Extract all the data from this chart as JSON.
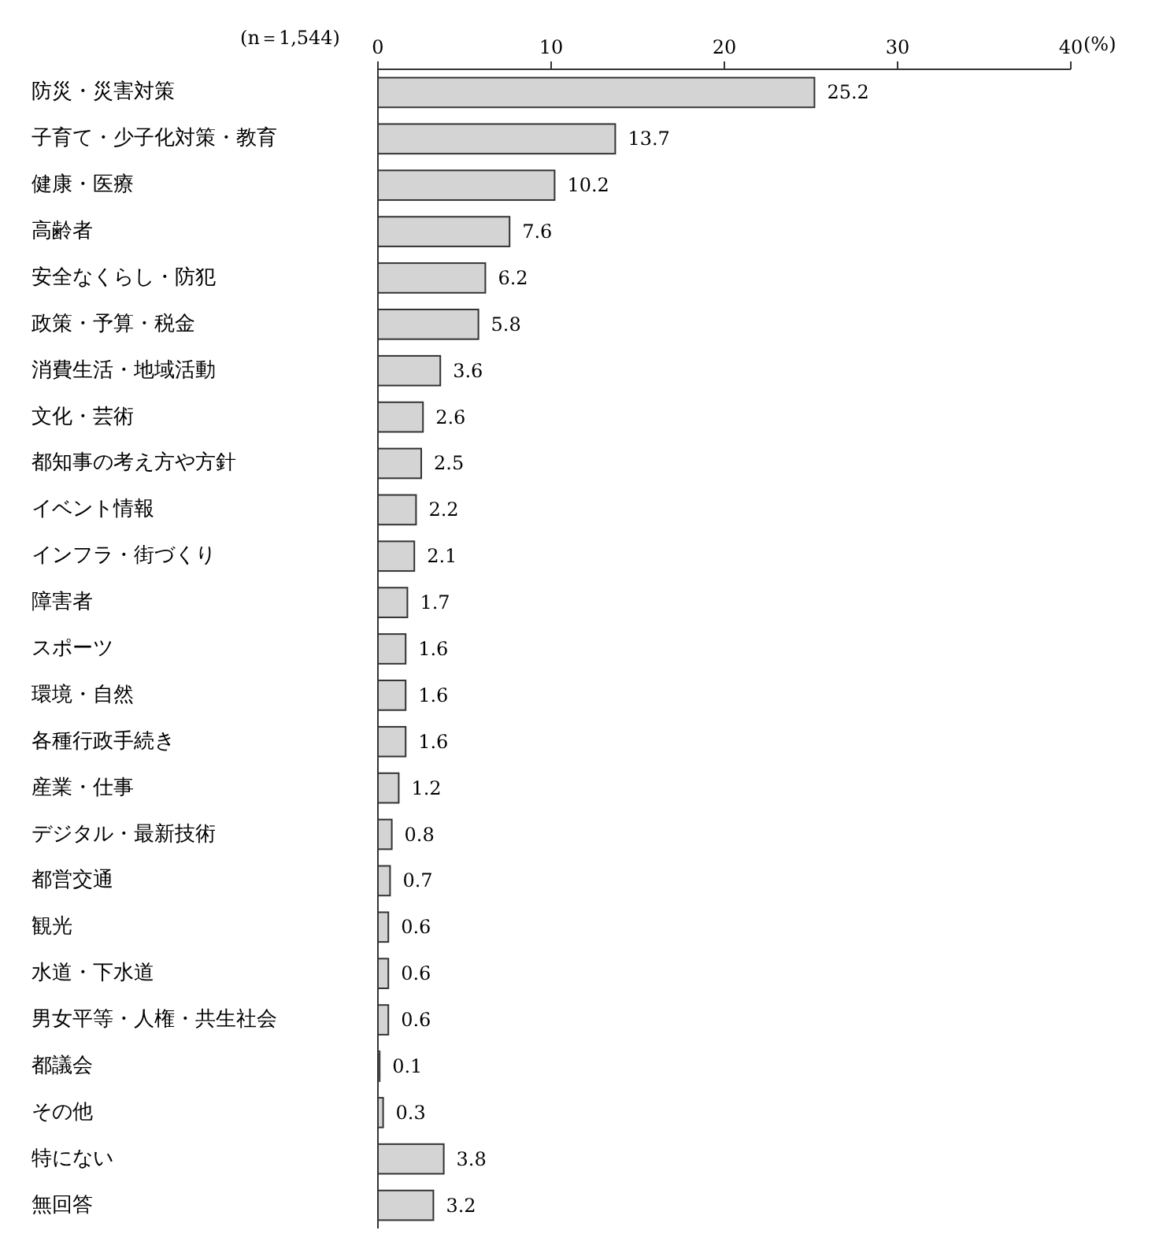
{
  "chart_data": {
    "type": "bar",
    "orientation": "horizontal",
    "categories": [
      "防災・災害対策",
      "子育て・少子化対策・教育",
      "健康・医療",
      "高齢者",
      "安全なくらし・防犯",
      "政策・予算・税金",
      "消費生活・地域活動",
      "文化・芸術",
      "都知事の考え方や方針",
      "イベント情報",
      "インフラ・街づくり",
      "障害者",
      "スポーツ",
      "環境・自然",
      "各種行政手続き",
      "産業・仕事",
      "デジタル・最新技術",
      "都営交通",
      "観光",
      "水道・下水道",
      "男女平等・人権・共生社会",
      "都議会",
      "その他",
      "特にない",
      "無回答"
    ],
    "values": [
      25.2,
      13.7,
      10.2,
      7.6,
      6.2,
      5.8,
      3.6,
      2.6,
      2.5,
      2.2,
      2.1,
      1.7,
      1.6,
      1.6,
      1.6,
      1.2,
      0.8,
      0.7,
      0.6,
      0.6,
      0.6,
      0.1,
      0.3,
      3.8,
      3.2
    ],
    "color": "#d4d4d4",
    "xlim": [
      0,
      40
    ],
    "xticks": [
      0,
      10,
      20,
      30,
      40
    ],
    "xlabel": "(%)",
    "annotations": [
      "(n＝1,544)"
    ],
    "data_labels": true,
    "grid": false
  }
}
